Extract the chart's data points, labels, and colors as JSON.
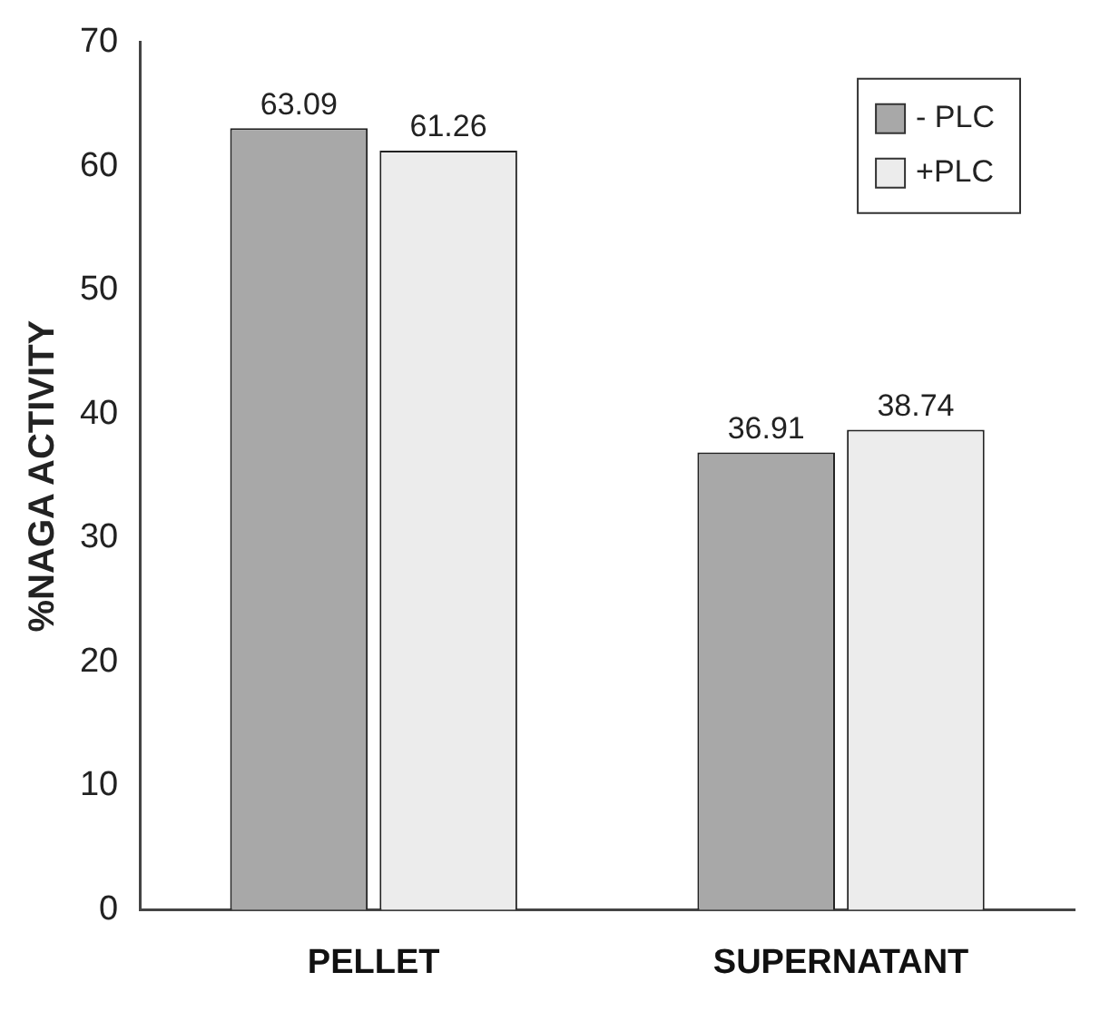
{
  "chart_data": {
    "type": "bar",
    "ylabel": "%NAGA ACTIVITY",
    "categories": [
      "PELLET",
      "SUPERNATANT"
    ],
    "series": [
      {
        "name": "- PLC",
        "color": "#a8a8a8",
        "values": [
          63.09,
          36.91
        ]
      },
      {
        "name": "+PLC",
        "color": "#ececec",
        "values": [
          61.26,
          38.74
        ]
      }
    ],
    "ylim": [
      0,
      70
    ],
    "yticks": [
      0,
      10,
      20,
      30,
      40,
      50,
      60,
      70
    ],
    "data_labels": true,
    "legend": "top right",
    "grid": false
  }
}
